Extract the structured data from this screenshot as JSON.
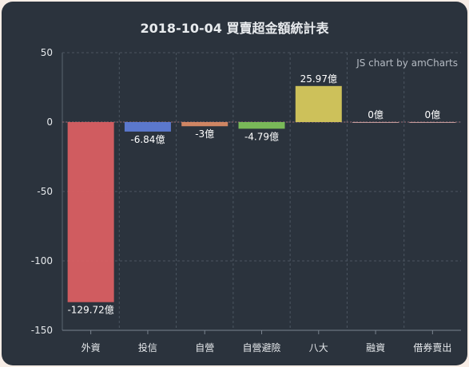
{
  "chart_data": {
    "type": "bar",
    "title": "2018-10-04 買賣超金額統計表",
    "credit": "JS chart by amCharts",
    "categories": [
      "外資",
      "投信",
      "自營",
      "自營避險",
      "八大",
      "融資",
      "借券賣出"
    ],
    "values": [
      -129.72,
      -6.84,
      -3,
      -4.79,
      25.97,
      0,
      0
    ],
    "labels": [
      "-129.72億",
      "-6.84億",
      "-3億",
      "-4.79億",
      "25.97億",
      "0億",
      "0億"
    ],
    "colors": [
      "#d95f62",
      "#5e7cd6",
      "#d88a65",
      "#7dc15a",
      "#d6c95c",
      "#c9a0a0",
      "#c9a0a0"
    ],
    "yticks": [
      50,
      0,
      -50,
      -100,
      -150
    ],
    "ylim": [
      -150,
      50
    ],
    "grid": true
  }
}
